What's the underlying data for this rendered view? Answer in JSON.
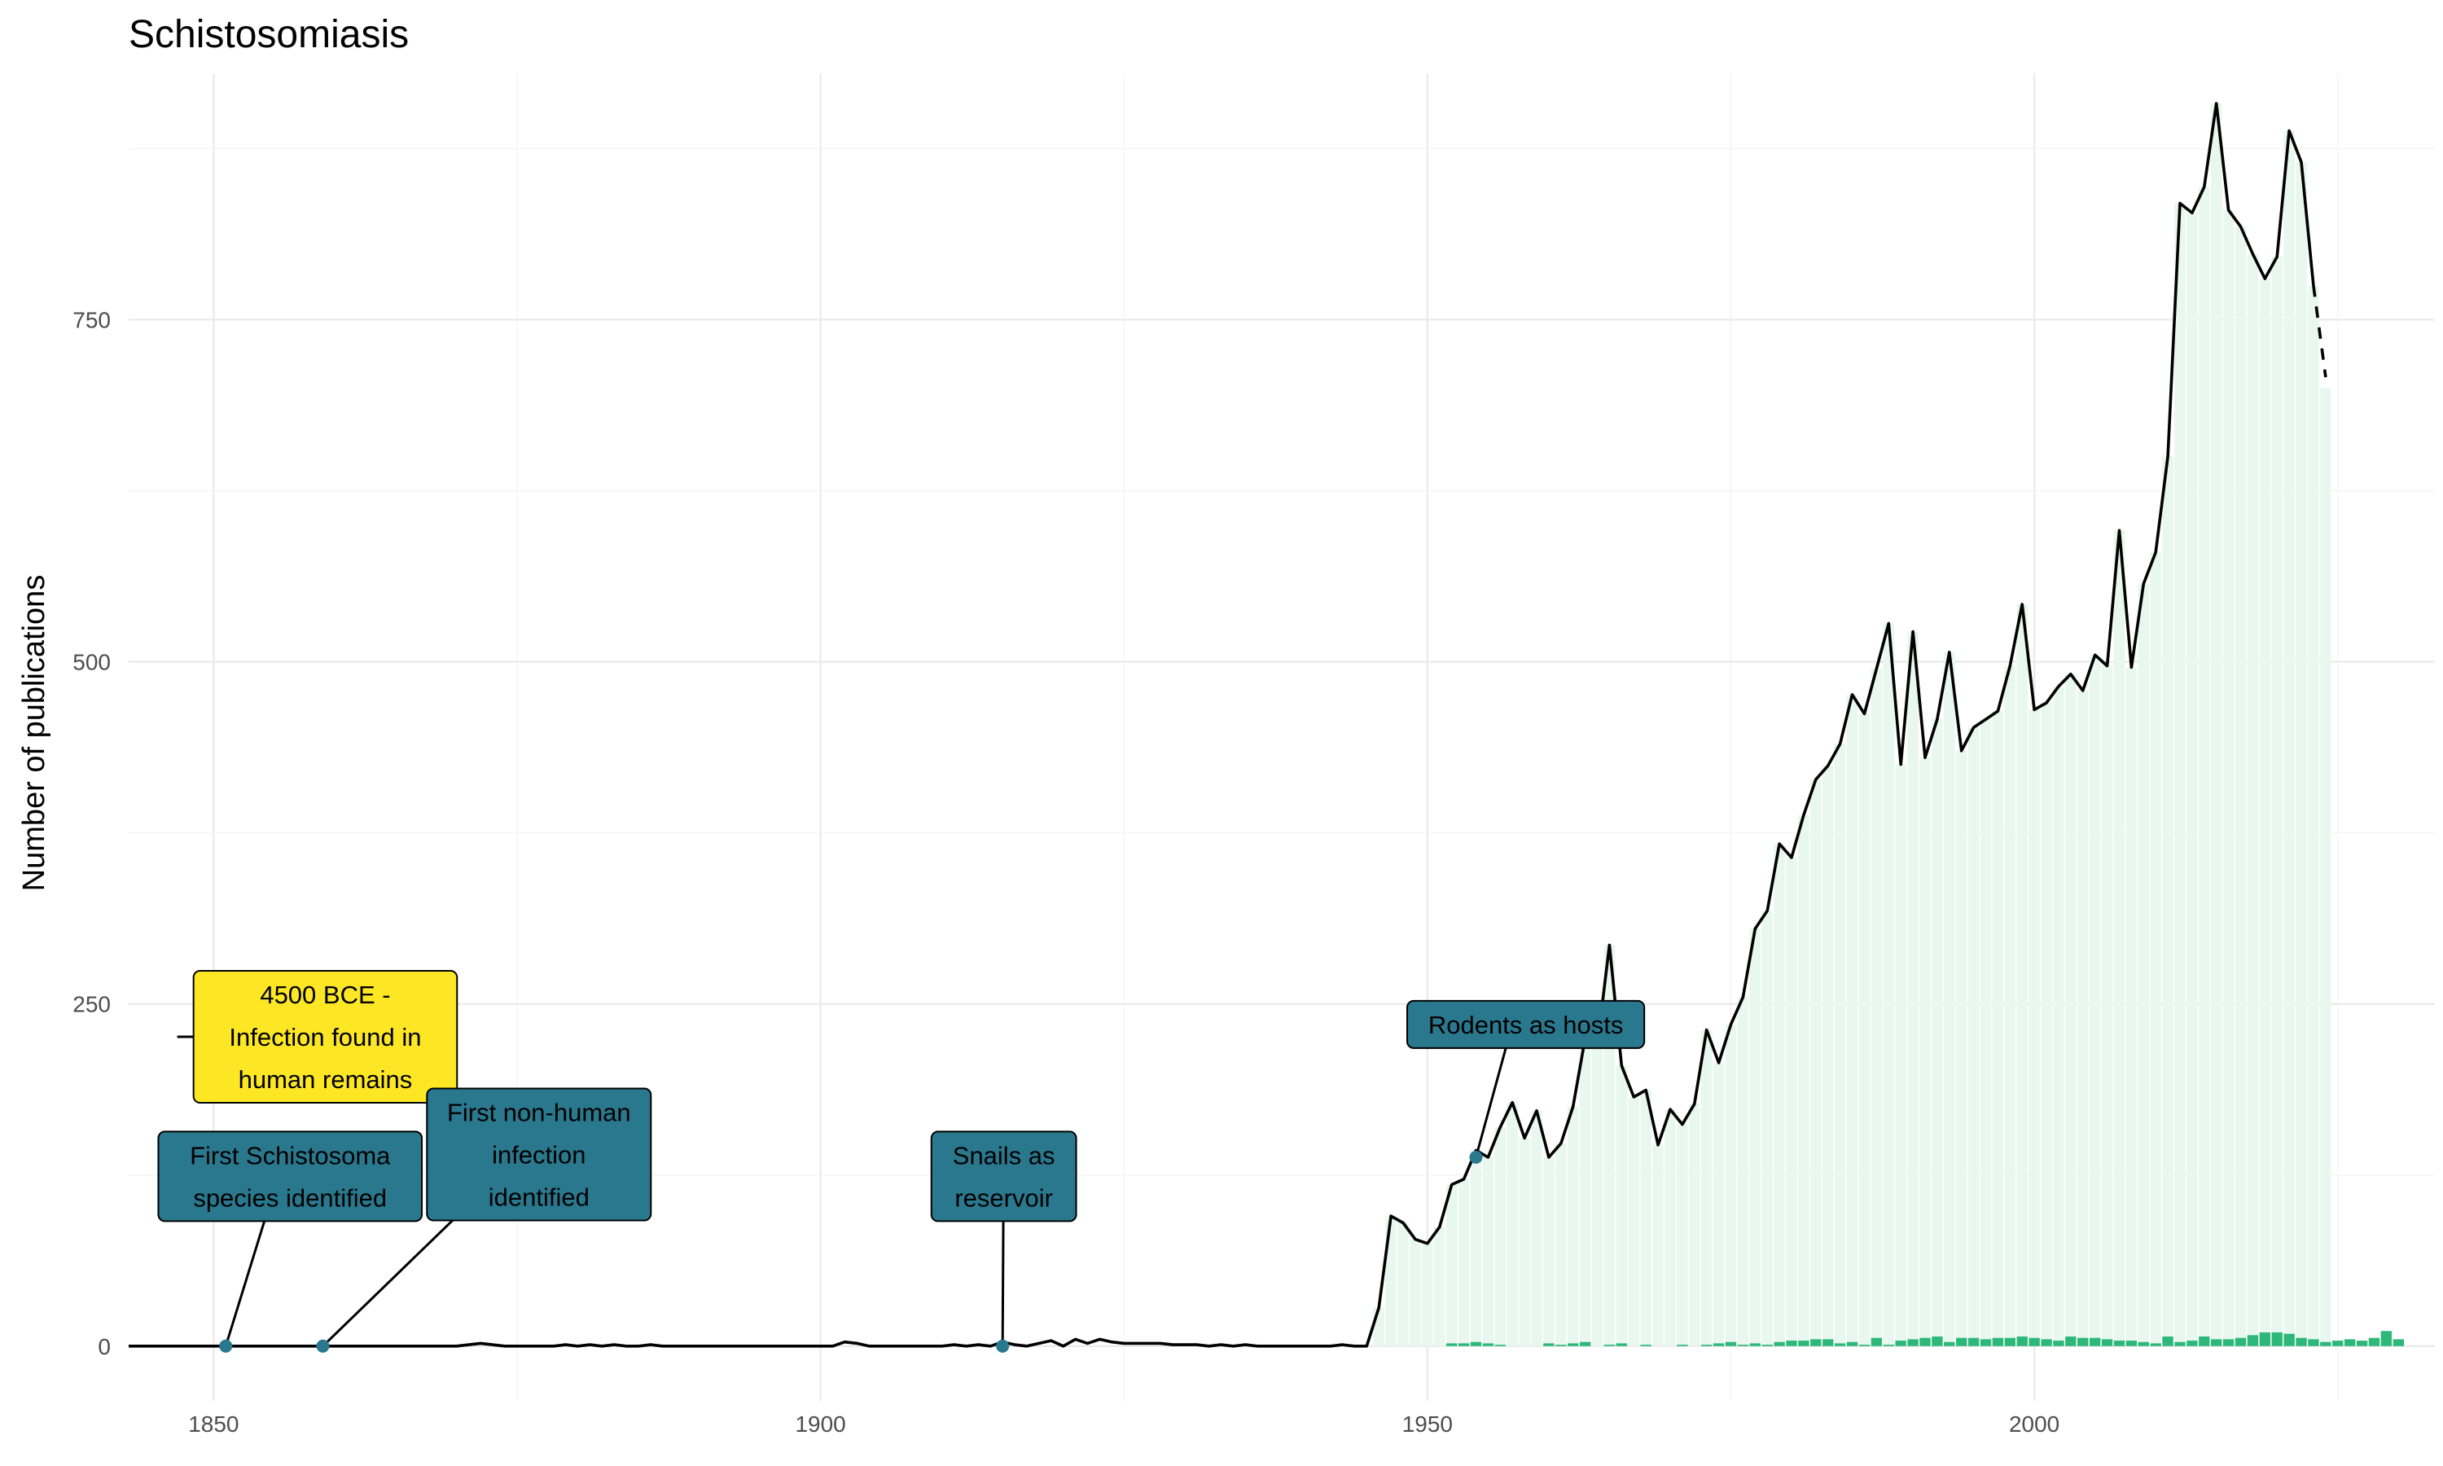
{
  "chart_data": {
    "type": "line",
    "title": "Schistosomiasis",
    "xlabel": "",
    "ylabel": "Number of publications",
    "xlim": [
      1843,
      2033
    ],
    "ylim": [
      -40,
      930
    ],
    "x_ticks": [
      1850,
      1900,
      1950,
      2000
    ],
    "y_ticks": [
      0,
      250,
      500,
      750
    ],
    "grid": true,
    "legend": "none",
    "series": [
      {
        "role": "total",
        "style": "solid",
        "color": "#000000",
        "points": [
          [
            1843,
            0
          ],
          [
            1870,
            0
          ],
          [
            1872,
            2
          ],
          [
            1874,
            0
          ],
          [
            1878,
            0
          ],
          [
            1879,
            1
          ],
          [
            1880,
            0
          ],
          [
            1881,
            1
          ],
          [
            1882,
            0
          ],
          [
            1883,
            1
          ],
          [
            1884,
            0
          ],
          [
            1885,
            0
          ],
          [
            1886,
            1
          ],
          [
            1887,
            0
          ],
          [
            1901,
            0
          ],
          [
            1902,
            3
          ],
          [
            1903,
            2
          ],
          [
            1904,
            0
          ],
          [
            1910,
            0
          ],
          [
            1911,
            1
          ],
          [
            1912,
            0
          ],
          [
            1913,
            1
          ],
          [
            1914,
            0
          ],
          [
            1915,
            3
          ],
          [
            1916,
            1
          ],
          [
            1917,
            0
          ],
          [
            1918,
            2
          ],
          [
            1919,
            4
          ],
          [
            1920,
            0
          ],
          [
            1921,
            5
          ],
          [
            1922,
            2
          ],
          [
            1923,
            5
          ],
          [
            1924,
            3
          ],
          [
            1925,
            2
          ],
          [
            1928,
            2
          ],
          [
            1929,
            1
          ],
          [
            1931,
            1
          ],
          [
            1932,
            0
          ],
          [
            1933,
            1
          ],
          [
            1934,
            0
          ],
          [
            1935,
            1
          ],
          [
            1936,
            0
          ],
          [
            1942,
            0
          ],
          [
            1943,
            1
          ],
          [
            1944,
            0
          ],
          [
            1945,
            0
          ],
          [
            1946,
            28
          ],
          [
            1947,
            95
          ],
          [
            1948,
            90
          ],
          [
            1949,
            78
          ],
          [
            1950,
            75
          ],
          [
            1951,
            87
          ],
          [
            1952,
            118
          ],
          [
            1953,
            122
          ],
          [
            1954,
            143
          ],
          [
            1955,
            138
          ],
          [
            1956,
            160
          ],
          [
            1957,
            178
          ],
          [
            1958,
            152
          ],
          [
            1959,
            172
          ],
          [
            1960,
            138
          ],
          [
            1961,
            148
          ],
          [
            1962,
            175
          ],
          [
            1963,
            225
          ],
          [
            1964,
            220
          ],
          [
            1965,
            293
          ],
          [
            1966,
            205
          ],
          [
            1967,
            182
          ],
          [
            1968,
            187
          ],
          [
            1969,
            147
          ],
          [
            1970,
            173
          ],
          [
            1971,
            162
          ],
          [
            1972,
            177
          ],
          [
            1973,
            231
          ],
          [
            1974,
            207
          ],
          [
            1975,
            235
          ],
          [
            1976,
            255
          ],
          [
            1977,
            305
          ],
          [
            1978,
            318
          ],
          [
            1979,
            367
          ],
          [
            1980,
            357
          ],
          [
            1981,
            388
          ],
          [
            1982,
            414
          ],
          [
            1983,
            424
          ],
          [
            1984,
            440
          ],
          [
            1985,
            476
          ],
          [
            1986,
            462
          ],
          [
            1987,
            495
          ],
          [
            1988,
            528
          ],
          [
            1989,
            425
          ],
          [
            1990,
            522
          ],
          [
            1991,
            430
          ],
          [
            1992,
            458
          ],
          [
            1993,
            507
          ],
          [
            1994,
            435
          ],
          [
            1995,
            452
          ],
          [
            1996,
            458
          ],
          [
            1997,
            464
          ],
          [
            1998,
            497
          ],
          [
            1999,
            542
          ],
          [
            2000,
            465
          ],
          [
            2001,
            470
          ],
          [
            2002,
            482
          ],
          [
            2003,
            491
          ],
          [
            2004,
            479
          ],
          [
            2005,
            505
          ],
          [
            2006,
            497
          ],
          [
            2007,
            596
          ],
          [
            2008,
            496
          ],
          [
            2009,
            557
          ],
          [
            2010,
            580
          ],
          [
            2011,
            650
          ],
          [
            2012,
            835
          ],
          [
            2013,
            828
          ],
          [
            2014,
            847
          ],
          [
            2015,
            908
          ],
          [
            2016,
            830
          ],
          [
            2017,
            818
          ],
          [
            2018,
            798
          ],
          [
            2019,
            780
          ],
          [
            2020,
            796
          ],
          [
            2021,
            888
          ],
          [
            2022,
            865
          ],
          [
            2023,
            775
          ]
        ]
      },
      {
        "role": "projection",
        "style": "dashed",
        "color": "#000000",
        "points": [
          [
            2023,
            775
          ],
          [
            2024,
            708
          ]
        ]
      }
    ],
    "bars_total": {
      "color": "#e8f7ef",
      "x_start": 1946,
      "values": [
        28,
        95,
        90,
        78,
        75,
        87,
        118,
        122,
        143,
        138,
        160,
        178,
        152,
        172,
        138,
        148,
        175,
        225,
        220,
        293,
        205,
        182,
        187,
        147,
        173,
        162,
        177,
        231,
        207,
        235,
        255,
        305,
        318,
        367,
        357,
        388,
        414,
        424,
        440,
        476,
        462,
        495,
        528,
        425,
        522,
        430,
        458,
        507,
        435,
        452,
        458,
        464,
        497,
        542,
        465,
        470,
        482,
        491,
        479,
        505,
        497,
        596,
        496,
        557,
        580,
        650,
        835,
        828,
        847,
        908,
        830,
        818,
        798,
        780,
        796,
        888,
        865,
        775,
        700
      ]
    },
    "bars_small": {
      "color": "#2db87a",
      "x_start": 1951,
      "values": [
        0,
        2,
        2,
        3,
        2,
        1,
        0,
        0,
        0,
        2,
        1,
        2,
        3,
        0,
        1,
        2,
        0,
        1,
        0,
        0,
        1,
        0,
        1,
        2,
        3,
        1,
        2,
        1,
        3,
        4,
        4,
        5,
        5,
        2,
        3,
        1,
        6,
        1,
        4,
        5,
        6,
        7,
        3,
        6,
        6,
        5,
        6,
        6,
        7,
        6,
        5,
        4,
        7,
        6,
        6,
        5,
        4,
        4,
        3,
        2,
        7,
        3,
        4,
        7,
        5,
        5,
        6,
        8,
        10,
        10,
        9,
        6,
        5,
        3,
        4,
        5,
        4,
        6,
        11,
        5
      ]
    },
    "annotations": [
      {
        "text": [
          "4500 BCE -",
          "Infection found in",
          "human remains"
        ],
        "x": null,
        "y": null,
        "fill": "#fde725",
        "anchor_year": 1847,
        "anchor_value": 226,
        "box_year": 1859.2,
        "box_value": 226
      },
      {
        "text": [
          "First Schistosoma",
          "species identified"
        ],
        "x": 1851,
        "y": 0,
        "fill": "#2a788e",
        "box_year": 1856.3,
        "box_value": 124
      },
      {
        "text": [
          "First non-human",
          "infection",
          "identified"
        ],
        "x": 1859,
        "y": 0,
        "fill": "#2a788e",
        "box_year": 1876.8,
        "box_value": 140
      },
      {
        "text": [
          "Snails as",
          "reservoir"
        ],
        "x": 1915,
        "y": 0,
        "fill": "#2a788e",
        "box_year": 1915.1,
        "box_value": 124
      },
      {
        "text": [
          "Rodents as hosts"
        ],
        "x": 1954,
        "y": 138,
        "fill": "#2a788e",
        "box_year": 1958.1,
        "box_value": 235
      }
    ]
  }
}
